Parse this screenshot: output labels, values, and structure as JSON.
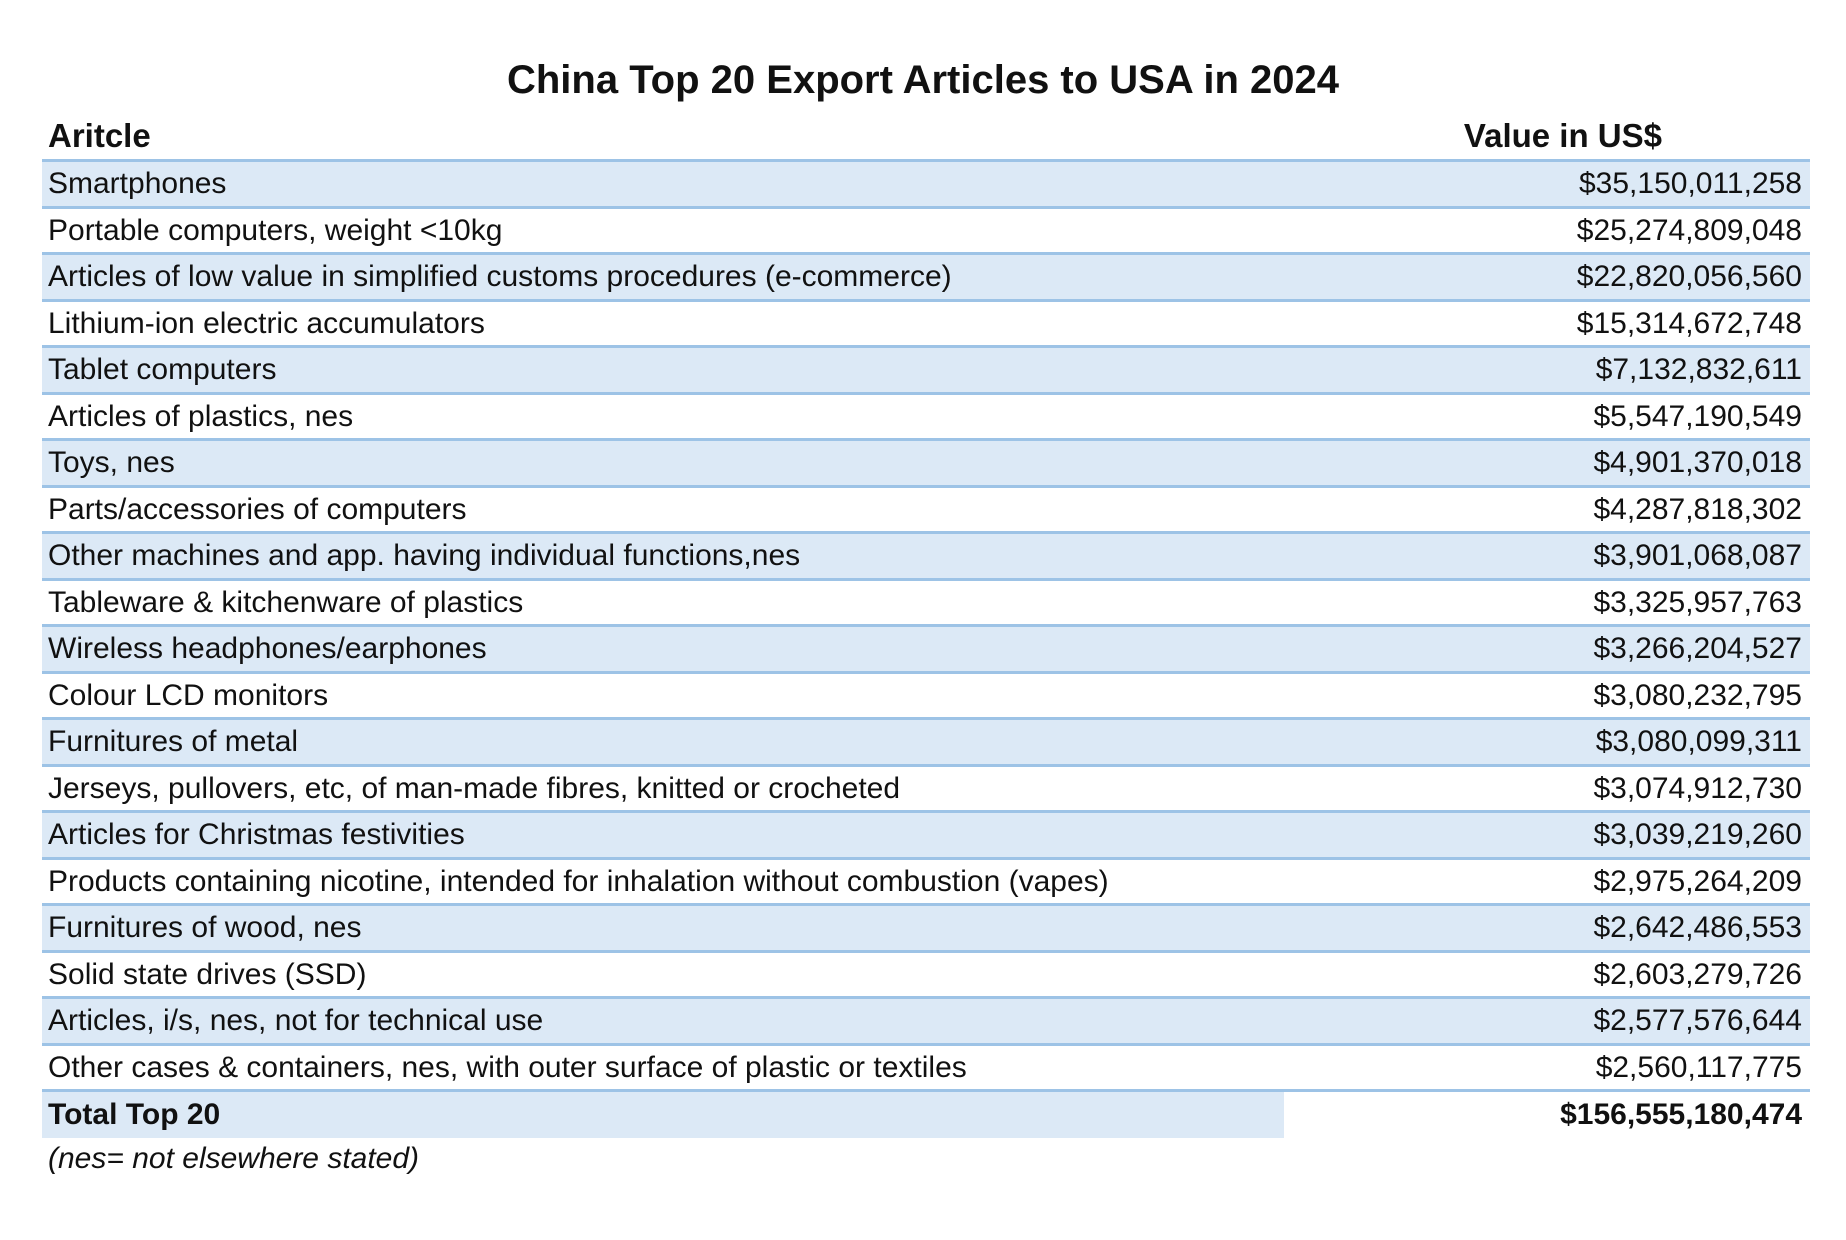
{
  "chart_data": {
    "type": "table",
    "title": "China Top 20 Export Articles to USA in 2024",
    "columns": [
      "Aritcle",
      "Value in US$"
    ],
    "rows": [
      {
        "article": "Smartphones",
        "value": "$35,150,011,258"
      },
      {
        "article": "Portable computers, weight <10kg",
        "value": "$25,274,809,048"
      },
      {
        "article": "Articles of low value in simplified customs procedures (e-commerce)",
        "value": "$22,820,056,560"
      },
      {
        "article": "Lithium-ion electric accumulators",
        "value": "$15,314,672,748"
      },
      {
        "article": "Tablet computers",
        "value": "$7,132,832,611"
      },
      {
        "article": "Articles of plastics, nes",
        "value": "$5,547,190,549"
      },
      {
        "article": "Toys, nes",
        "value": "$4,901,370,018"
      },
      {
        "article": "Parts/accessories of computers",
        "value": "$4,287,818,302"
      },
      {
        "article": "Other machines and app. having individual functions,nes",
        "value": "$3,901,068,087"
      },
      {
        "article": "Tableware & kitchenware of plastics",
        "value": "$3,325,957,763"
      },
      {
        "article": "Wireless headphones/earphones",
        "value": "$3,266,204,527"
      },
      {
        "article": "Colour LCD monitors",
        "value": "$3,080,232,795"
      },
      {
        "article": "Furnitures of metal",
        "value": "$3,080,099,311"
      },
      {
        "article": "Jerseys, pullovers, etc, of man-made fibres, knitted or crocheted",
        "value": "$3,074,912,730"
      },
      {
        "article": "Articles for Christmas festivities",
        "value": "$3,039,219,260"
      },
      {
        "article": "Products containing nicotine, intended for inhalation without combustion (vapes)",
        "value": "$2,975,264,209"
      },
      {
        "article": "Furnitures of wood, nes",
        "value": "$2,642,486,553"
      },
      {
        "article": "Solid state drives (SSD)",
        "value": "$2,603,279,726"
      },
      {
        "article": "Articles, i/s, nes, not for technical use",
        "value": "$2,577,576,644"
      },
      {
        "article": "Other cases & containers, nes, with outer surface of plastic or textiles",
        "value": "$2,560,117,775"
      }
    ],
    "total": {
      "label": "Total Top 20",
      "value": "$156,555,180,474"
    },
    "footnote": "(nes= not elsewhere stated)",
    "colors": {
      "band": "#dce9f6",
      "rule": "#9dc3e6"
    }
  }
}
